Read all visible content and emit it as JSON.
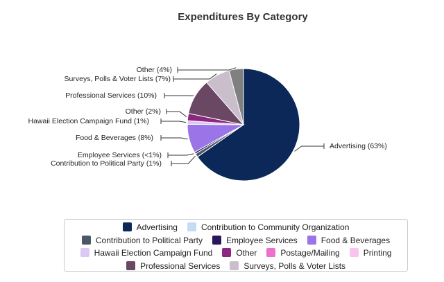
{
  "chart_data": {
    "type": "pie",
    "title": "Expenditures By Category",
    "slices": [
      {
        "label": "Advertising (63%)",
        "category": "Advertising",
        "value": 63,
        "color": "#0b2858"
      },
      {
        "label": "Contribution to Political Party (1%)",
        "category": "Contribution to Political Party",
        "value": 1,
        "color": "#4a5868"
      },
      {
        "label": "Employee Services (<1%)",
        "category": "Employee Services",
        "value": 0.5,
        "color": "#2a185a"
      },
      {
        "label": "Food & Beverages (8%)",
        "category": "Food & Beverages",
        "value": 8,
        "color": "#9b74e8"
      },
      {
        "label": "Hawaii Election Campaign Fund (1%)",
        "category": "Hawaii Election Campaign Fund",
        "value": 1,
        "color": "#dcc8f6"
      },
      {
        "label": "Other (2%)",
        "category": "Other",
        "value": 2,
        "color": "#8c2880"
      },
      {
        "label": "Professional Services (10%)",
        "category": "Professional Services",
        "value": 10,
        "color": "#6a4864"
      },
      {
        "label": "Surveys, Polls & Voter Lists (7%)",
        "category": "Surveys, Polls & Voter Lists",
        "value": 7,
        "color": "#cabdcc"
      },
      {
        "label": "Other (4%)",
        "category": "Other",
        "value": 4,
        "color": "#808080"
      }
    ],
    "legend": {
      "placement": "bottom",
      "rows": [
        [
          {
            "label": "Advertising",
            "color": "#0b2858"
          },
          {
            "label": "Contribution to Community Organization",
            "color": "#c4dcf6"
          }
        ],
        [
          {
            "label": "Contribution to Political Party",
            "color": "#4a5868"
          },
          {
            "label": "Employee Services",
            "color": "#2a185a"
          },
          {
            "label": "Food & Beverages",
            "color": "#9b74e8"
          }
        ],
        [
          {
            "label": "Hawaii Election Campaign Fund",
            "color": "#dcc8f6"
          },
          {
            "label": "Other",
            "color": "#8c2880"
          },
          {
            "label": "Postage/Mailing",
            "color": "#ec70cc"
          },
          {
            "label": "Printing",
            "color": "#f8c4ee"
          }
        ],
        [
          {
            "label": "Professional Services",
            "color": "#6a4864"
          },
          {
            "label": "Surveys, Polls & Voter Lists",
            "color": "#cabdcc"
          }
        ]
      ]
    }
  }
}
